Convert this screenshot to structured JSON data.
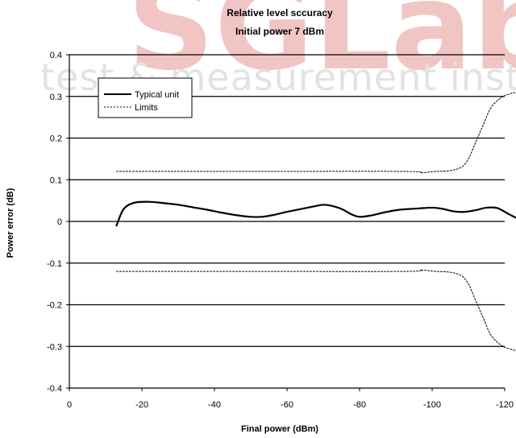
{
  "watermark": {
    "big_text": "SGLab",
    "small_text": "test & measurement inst",
    "colors": {
      "red": "#f2c5c5",
      "gray": "#e2e2e2"
    }
  },
  "chart_data": {
    "type": "line",
    "title": "Relative level sccuracy",
    "subtitle": "Initial power 7 dBm",
    "xlabel": "Final power (dBm)",
    "ylabel": "Power error (dB)",
    "xlim": [
      0,
      -120
    ],
    "ylim": [
      -0.4,
      0.4
    ],
    "x_ticks": [
      0,
      -20,
      -40,
      -60,
      -80,
      -100,
      -120
    ],
    "y_ticks": [
      0.4,
      0.3,
      0.2,
      0.1,
      0,
      -0.1,
      -0.2,
      -0.3,
      -0.4
    ],
    "x_tick_labels": [
      "0",
      "-20",
      "-40",
      "-60",
      "-80",
      "-100",
      "-120"
    ],
    "y_tick_labels": [
      "0.4",
      "0.3",
      "0.2",
      "0.1",
      "0",
      "-0.1",
      "-0.2",
      "-0.3",
      "-0.4"
    ],
    "grid": "horizontal",
    "legend_position": "top-left",
    "series": [
      {
        "name": "Typical unit",
        "style": "solid",
        "color": "#000000",
        "points": [
          [
            -13,
            -0.01
          ],
          [
            -15,
            0.03
          ],
          [
            -18,
            0.045
          ],
          [
            -22,
            0.047
          ],
          [
            -26,
            0.044
          ],
          [
            -30,
            0.04
          ],
          [
            -34,
            0.034
          ],
          [
            -38,
            0.028
          ],
          [
            -42,
            0.021
          ],
          [
            -46,
            0.015
          ],
          [
            -50,
            0.011
          ],
          [
            -53,
            0.011
          ],
          [
            -56,
            0.015
          ],
          [
            -60,
            0.023
          ],
          [
            -64,
            0.03
          ],
          [
            -68,
            0.037
          ],
          [
            -70,
            0.04
          ],
          [
            -72,
            0.038
          ],
          [
            -75,
            0.03
          ],
          [
            -78,
            0.016
          ],
          [
            -80,
            0.011
          ],
          [
            -83,
            0.014
          ],
          [
            -87,
            0.022
          ],
          [
            -91,
            0.028
          ],
          [
            -96,
            0.031
          ],
          [
            -100,
            0.033
          ],
          [
            -103,
            0.03
          ],
          [
            -106,
            0.024
          ],
          [
            -109,
            0.023
          ],
          [
            -112,
            0.027
          ],
          [
            -115,
            0.033
          ],
          [
            -118,
            0.032
          ],
          [
            -121,
            0.018
          ],
          [
            -124,
            0.005
          ]
        ]
      },
      {
        "name": "Limits",
        "style": "dotted",
        "color": "#000000",
        "points": [
          [
            -13,
            0.12
          ],
          [
            -50,
            0.12
          ],
          [
            -92,
            0.12
          ],
          [
            -97,
            0.117
          ],
          [
            -101,
            0.12
          ],
          [
            -105,
            0.122
          ],
          [
            -108,
            0.13
          ],
          [
            -110,
            0.15
          ],
          [
            -112,
            0.19
          ],
          [
            -114,
            0.23
          ],
          [
            -116,
            0.27
          ],
          [
            -118,
            0.29
          ],
          [
            -120,
            0.302
          ],
          [
            -123,
            0.31
          ]
        ]
      },
      {
        "name": "Limits",
        "style": "dotted",
        "color": "#000000",
        "points": [
          [
            -13,
            -0.12
          ],
          [
            -50,
            -0.12
          ],
          [
            -92,
            -0.12
          ],
          [
            -97,
            -0.117
          ],
          [
            -101,
            -0.12
          ],
          [
            -105,
            -0.122
          ],
          [
            -108,
            -0.13
          ],
          [
            -110,
            -0.15
          ],
          [
            -112,
            -0.19
          ],
          [
            -114,
            -0.23
          ],
          [
            -116,
            -0.27
          ],
          [
            -118,
            -0.29
          ],
          [
            -120,
            -0.302
          ],
          [
            -123,
            -0.31
          ]
        ]
      }
    ]
  }
}
